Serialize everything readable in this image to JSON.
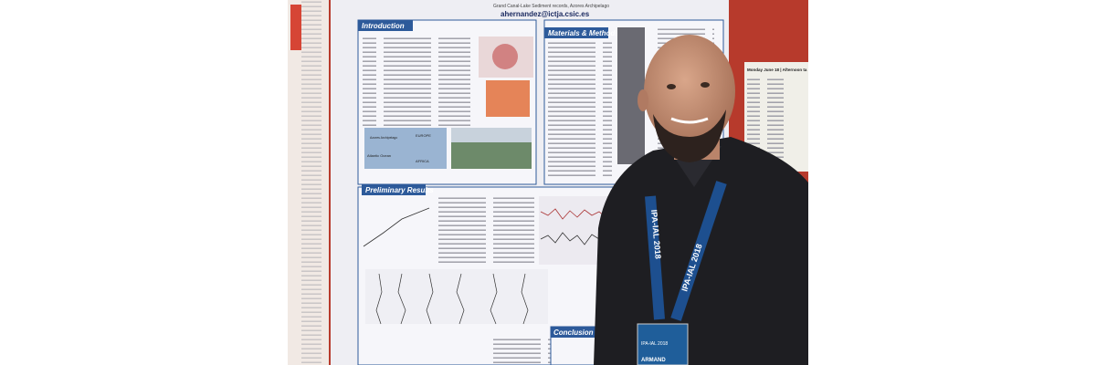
{
  "poster": {
    "email": "ahernandez@ictja.csic.es",
    "sections": {
      "introduction": "Introduction",
      "methods": "Materials & Methods",
      "results": "Preliminary Results",
      "conclusion": "Conclusion"
    },
    "map_labels": [
      "EUROPE",
      "Atlantic Ocean",
      "AFRICA",
      "Azores Archipelago"
    ]
  },
  "lanyard": "IPA-IAL 2018",
  "badge": {
    "event": "IPA-IAL 2018",
    "name": "ARMAND"
  },
  "side_poster": "Monday June 18 | Afternoon ta"
}
